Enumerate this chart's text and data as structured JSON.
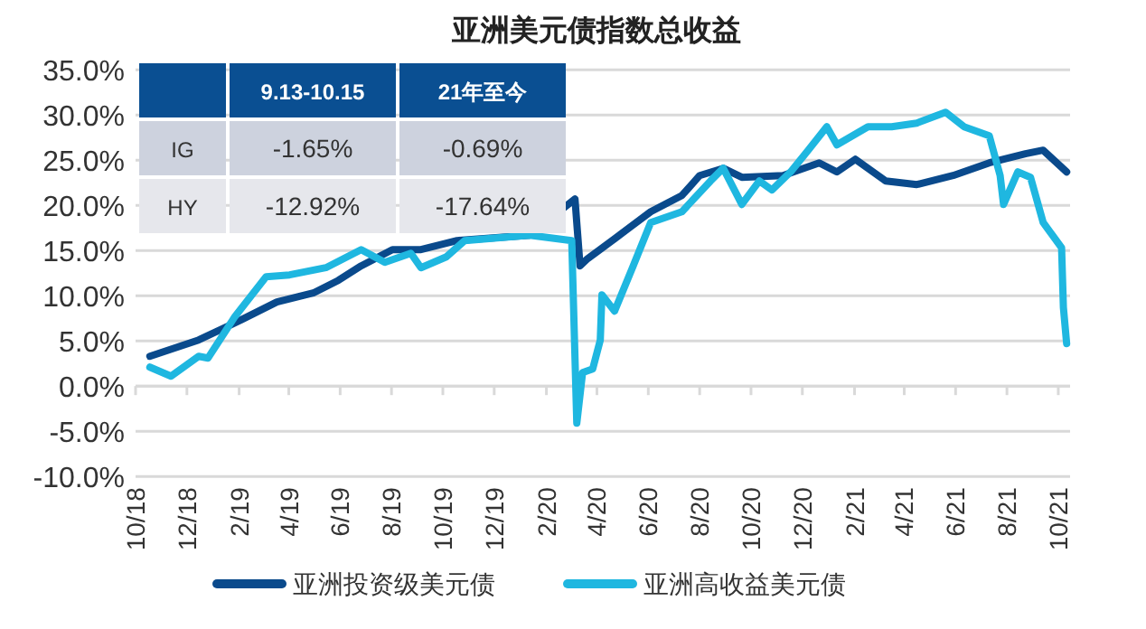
{
  "chart_data": {
    "type": "line",
    "title": "亚洲美元债指数总收益",
    "xlim": [
      "2018-10-01",
      "2021-10-15"
    ],
    "xticks": [
      {
        "value": "2018-10-01",
        "label": "10/18"
      },
      {
        "value": "2018-12-01",
        "label": "12/18"
      },
      {
        "value": "2019-02-01",
        "label": "2/19"
      },
      {
        "value": "2019-04-01",
        "label": "4/19"
      },
      {
        "value": "2019-06-01",
        "label": "6/19"
      },
      {
        "value": "2019-08-01",
        "label": "8/19"
      },
      {
        "value": "2019-10-01",
        "label": "10/19"
      },
      {
        "value": "2019-12-01",
        "label": "12/19"
      },
      {
        "value": "2020-02-01",
        "label": "2/20"
      },
      {
        "value": "2020-04-01",
        "label": "4/20"
      },
      {
        "value": "2020-06-01",
        "label": "6/20"
      },
      {
        "value": "2020-08-01",
        "label": "8/20"
      },
      {
        "value": "2020-10-01",
        "label": "10/20"
      },
      {
        "value": "2020-12-01",
        "label": "12/20"
      },
      {
        "value": "2021-02-01",
        "label": "2/21"
      },
      {
        "value": "2021-04-01",
        "label": "4/21"
      },
      {
        "value": "2021-06-01",
        "label": "6/21"
      },
      {
        "value": "2021-08-01",
        "label": "8/21"
      },
      {
        "value": "2021-10-01",
        "label": "10/21"
      }
    ],
    "ylim": [
      -10,
      35
    ],
    "yticks": [
      {
        "value": -10,
        "label": "-10.0%"
      },
      {
        "value": -5,
        "label": "-5.0%"
      },
      {
        "value": 0,
        "label": "0.0%"
      },
      {
        "value": 5,
        "label": "5.0%"
      },
      {
        "value": 10,
        "label": "10.0%"
      },
      {
        "value": 15,
        "label": "15.0%"
      },
      {
        "value": 20,
        "label": "20.0%"
      },
      {
        "value": 25,
        "label": "25.0%"
      },
      {
        "value": 30,
        "label": "30.0%"
      },
      {
        "value": 35,
        "label": "35.0%"
      }
    ],
    "grid": "y",
    "legend": "bottom",
    "annotations": [
      "9.13-10.15",
      "21年至今",
      "IG",
      "-1.65%",
      "-0.69%",
      "HY",
      "-12.92%",
      "-17.64%"
    ],
    "series": [
      {
        "name": "亚洲投资级美元债",
        "color": "#0a4a8c",
        "x": [
          "2018-10-18",
          "2018-12-15",
          "2019-02-03",
          "2019-03-18",
          "2019-04-30",
          "2019-05-30",
          "2019-06-26",
          "2019-08-02",
          "2019-09-05",
          "2019-10-18",
          "2020-01-12",
          "2020-03-06",
          "2020-03-12",
          "2020-03-21",
          "2020-04-22",
          "2020-06-04",
          "2020-07-11",
          "2020-08-01",
          "2020-08-29",
          "2020-09-20",
          "2020-11-08",
          "2020-12-21",
          "2021-01-11",
          "2021-02-02",
          "2021-03-10",
          "2021-04-16",
          "2021-05-29",
          "2021-07-11",
          "2021-08-23",
          "2021-09-13",
          "2021-10-11"
        ],
        "values": [
          3.3,
          5.1,
          7.3,
          9.3,
          10.3,
          11.7,
          13.3,
          15.1,
          15.1,
          16.1,
          16.7,
          20.7,
          13.3,
          14.1,
          16.3,
          19.3,
          21.1,
          23.3,
          24.1,
          23.1,
          23.3,
          24.7,
          23.7,
          25.1,
          22.7,
          22.3,
          23.3,
          24.7,
          25.7,
          26.1,
          23.7
        ]
      },
      {
        "name": "亚洲高收益美元债",
        "color": "#1fb7e0",
        "x": [
          "2018-10-18",
          "2018-11-12",
          "2018-12-15",
          "2018-12-26",
          "2019-01-27",
          "2019-03-05",
          "2019-04-02",
          "2019-05-15",
          "2019-06-26",
          "2019-07-24",
          "2019-08-24",
          "2019-09-05",
          "2019-10-05",
          "2019-10-27",
          "2020-01-12",
          "2020-03-02",
          "2020-03-08",
          "2020-03-15",
          "2020-03-27",
          "2020-04-05",
          "2020-04-07",
          "2020-04-22",
          "2020-05-14",
          "2020-06-04",
          "2020-07-11",
          "2020-08-14",
          "2020-08-29",
          "2020-09-20",
          "2020-10-11",
          "2020-10-26",
          "2020-11-17",
          "2020-12-08",
          "2020-12-30",
          "2021-01-11",
          "2021-02-17",
          "2021-03-17",
          "2021-04-16",
          "2021-05-20",
          "2021-06-11",
          "2021-07-11",
          "2021-07-24",
          "2021-07-28",
          "2021-08-14",
          "2021-08-29",
          "2021-09-13",
          "2021-09-24",
          "2021-10-05",
          "2021-10-07",
          "2021-10-11"
        ],
        "values": [
          2.1,
          1.1,
          3.3,
          3.1,
          7.7,
          12.1,
          12.3,
          13.1,
          15.1,
          13.7,
          14.7,
          13.1,
          14.3,
          16.1,
          16.7,
          16.1,
          -4.1,
          1.5,
          1.9,
          5.1,
          10.1,
          8.3,
          13.3,
          18.1,
          19.3,
          22.7,
          24.1,
          20.1,
          22.7,
          21.7,
          23.7,
          26.1,
          28.7,
          26.7,
          28.7,
          28.7,
          29.1,
          30.3,
          28.7,
          27.7,
          23.3,
          20.1,
          23.7,
          23.1,
          18.1,
          16.7,
          15.3,
          8.7,
          4.7
        ]
      }
    ]
  }
}
